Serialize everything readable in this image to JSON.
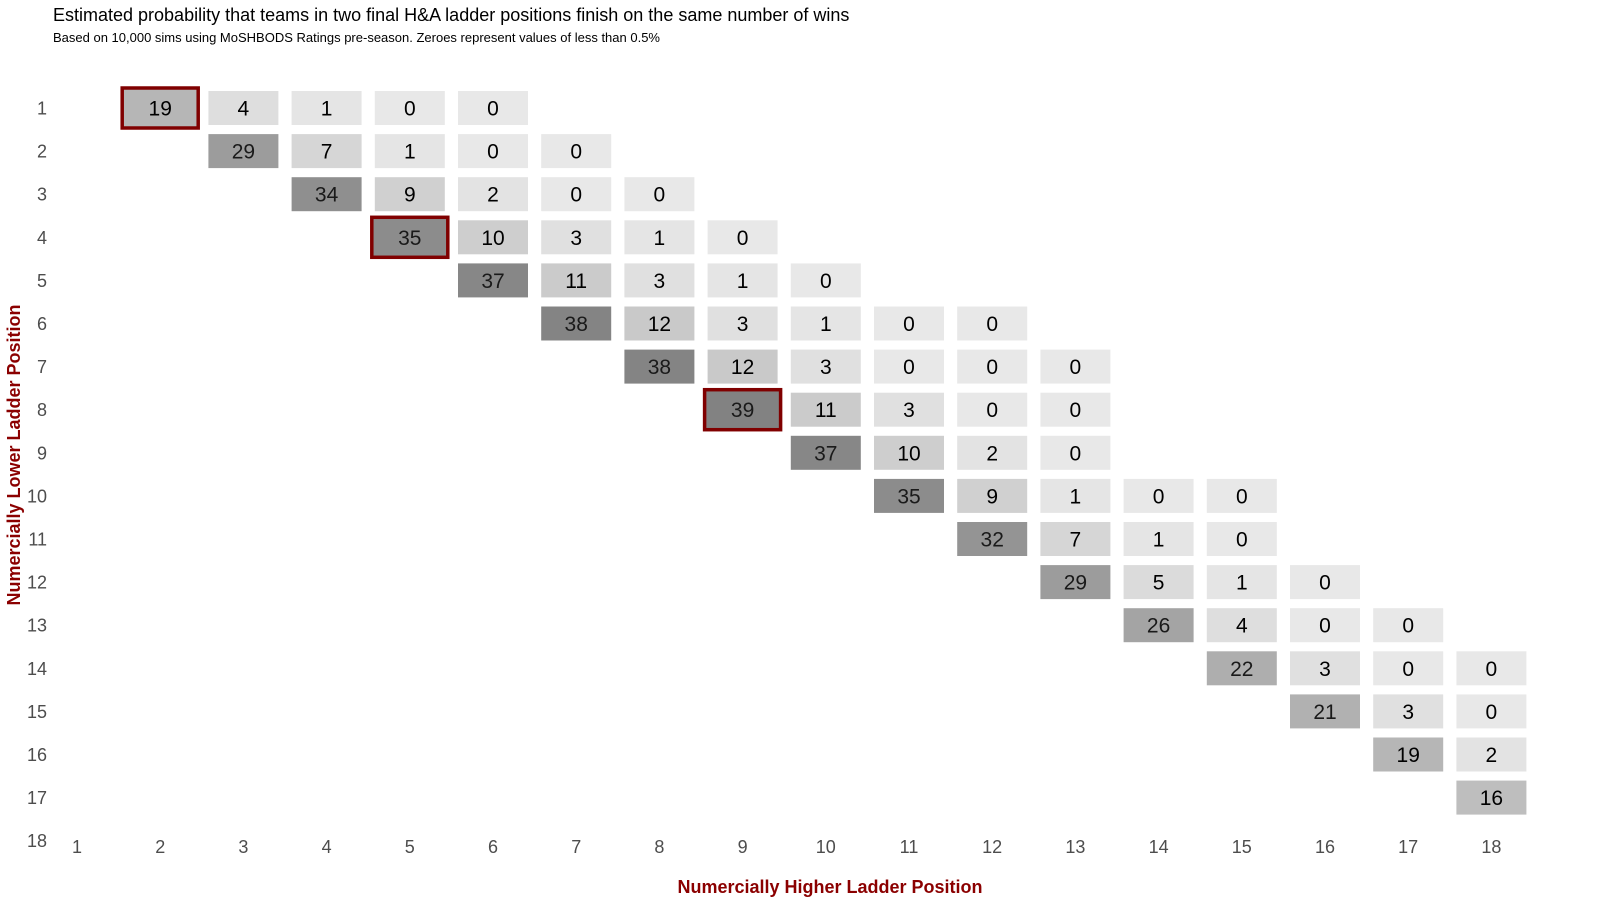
{
  "chart_data": {
    "type": "heatmap",
    "title": "Estimated probability that teams in two final H&A ladder positions finish on the same number of wins",
    "subtitle": "Based on 10,000 sims using MoSHBODS Ratings pre-season. Zeroes represent values of less than 0.5%",
    "xlabel": "Numercially Higher Ladder Position",
    "ylabel": "Numercially Lower Ladder Position",
    "x_categories": [
      "1",
      "2",
      "3",
      "4",
      "5",
      "6",
      "7",
      "8",
      "9",
      "10",
      "11",
      "12",
      "13",
      "14",
      "15",
      "16",
      "17",
      "18"
    ],
    "y_categories": [
      "1",
      "2",
      "3",
      "4",
      "5",
      "6",
      "7",
      "8",
      "9",
      "10",
      "11",
      "12",
      "13",
      "14",
      "15",
      "16",
      "17",
      "18"
    ],
    "axis_title_color": "#8b0000",
    "highlight_color": "#800000",
    "cells": [
      {
        "x": 2,
        "y": 1,
        "value": 19,
        "highlight": true
      },
      {
        "x": 3,
        "y": 1,
        "value": 4
      },
      {
        "x": 4,
        "y": 1,
        "value": 1
      },
      {
        "x": 5,
        "y": 1,
        "value": 0
      },
      {
        "x": 6,
        "y": 1,
        "value": 0
      },
      {
        "x": 3,
        "y": 2,
        "value": 29
      },
      {
        "x": 4,
        "y": 2,
        "value": 7
      },
      {
        "x": 5,
        "y": 2,
        "value": 1
      },
      {
        "x": 6,
        "y": 2,
        "value": 0
      },
      {
        "x": 7,
        "y": 2,
        "value": 0
      },
      {
        "x": 4,
        "y": 3,
        "value": 34
      },
      {
        "x": 5,
        "y": 3,
        "value": 9
      },
      {
        "x": 6,
        "y": 3,
        "value": 2
      },
      {
        "x": 7,
        "y": 3,
        "value": 0
      },
      {
        "x": 8,
        "y": 3,
        "value": 0
      },
      {
        "x": 5,
        "y": 4,
        "value": 35,
        "highlight": true
      },
      {
        "x": 6,
        "y": 4,
        "value": 10
      },
      {
        "x": 7,
        "y": 4,
        "value": 3
      },
      {
        "x": 8,
        "y": 4,
        "value": 1
      },
      {
        "x": 9,
        "y": 4,
        "value": 0
      },
      {
        "x": 6,
        "y": 5,
        "value": 37
      },
      {
        "x": 7,
        "y": 5,
        "value": 11
      },
      {
        "x": 8,
        "y": 5,
        "value": 3
      },
      {
        "x": 9,
        "y": 5,
        "value": 1
      },
      {
        "x": 10,
        "y": 5,
        "value": 0
      },
      {
        "x": 7,
        "y": 6,
        "value": 38
      },
      {
        "x": 8,
        "y": 6,
        "value": 12
      },
      {
        "x": 9,
        "y": 6,
        "value": 3
      },
      {
        "x": 10,
        "y": 6,
        "value": 1
      },
      {
        "x": 11,
        "y": 6,
        "value": 0
      },
      {
        "x": 12,
        "y": 6,
        "value": 0
      },
      {
        "x": 8,
        "y": 7,
        "value": 38
      },
      {
        "x": 9,
        "y": 7,
        "value": 12
      },
      {
        "x": 10,
        "y": 7,
        "value": 3
      },
      {
        "x": 11,
        "y": 7,
        "value": 0
      },
      {
        "x": 12,
        "y": 7,
        "value": 0
      },
      {
        "x": 13,
        "y": 7,
        "value": 0
      },
      {
        "x": 9,
        "y": 8,
        "value": 39,
        "highlight": true
      },
      {
        "x": 10,
        "y": 8,
        "value": 11
      },
      {
        "x": 11,
        "y": 8,
        "value": 3
      },
      {
        "x": 12,
        "y": 8,
        "value": 0
      },
      {
        "x": 13,
        "y": 8,
        "value": 0
      },
      {
        "x": 10,
        "y": 9,
        "value": 37
      },
      {
        "x": 11,
        "y": 9,
        "value": 10
      },
      {
        "x": 12,
        "y": 9,
        "value": 2
      },
      {
        "x": 13,
        "y": 9,
        "value": 0
      },
      {
        "x": 11,
        "y": 10,
        "value": 35
      },
      {
        "x": 12,
        "y": 10,
        "value": 9
      },
      {
        "x": 13,
        "y": 10,
        "value": 1
      },
      {
        "x": 14,
        "y": 10,
        "value": 0
      },
      {
        "x": 15,
        "y": 10,
        "value": 0
      },
      {
        "x": 12,
        "y": 11,
        "value": 32
      },
      {
        "x": 13,
        "y": 11,
        "value": 7
      },
      {
        "x": 14,
        "y": 11,
        "value": 1
      },
      {
        "x": 15,
        "y": 11,
        "value": 0
      },
      {
        "x": 13,
        "y": 12,
        "value": 29
      },
      {
        "x": 14,
        "y": 12,
        "value": 5
      },
      {
        "x": 15,
        "y": 12,
        "value": 1
      },
      {
        "x": 16,
        "y": 12,
        "value": 0
      },
      {
        "x": 14,
        "y": 13,
        "value": 26
      },
      {
        "x": 15,
        "y": 13,
        "value": 4
      },
      {
        "x": 16,
        "y": 13,
        "value": 0
      },
      {
        "x": 17,
        "y": 13,
        "value": 0
      },
      {
        "x": 15,
        "y": 14,
        "value": 22
      },
      {
        "x": 16,
        "y": 14,
        "value": 3
      },
      {
        "x": 17,
        "y": 14,
        "value": 0
      },
      {
        "x": 18,
        "y": 14,
        "value": 0
      },
      {
        "x": 16,
        "y": 15,
        "value": 21
      },
      {
        "x": 17,
        "y": 15,
        "value": 3
      },
      {
        "x": 18,
        "y": 15,
        "value": 0
      },
      {
        "x": 17,
        "y": 16,
        "value": 19
      },
      {
        "x": 18,
        "y": 16,
        "value": 2
      },
      {
        "x": 18,
        "y": 17,
        "value": 16
      }
    ],
    "value_range": [
      0,
      40
    ],
    "fill_gradient": {
      "low": "#e8e8e8",
      "high": "#7f7f7f"
    },
    "grid": false,
    "legend": "none"
  }
}
